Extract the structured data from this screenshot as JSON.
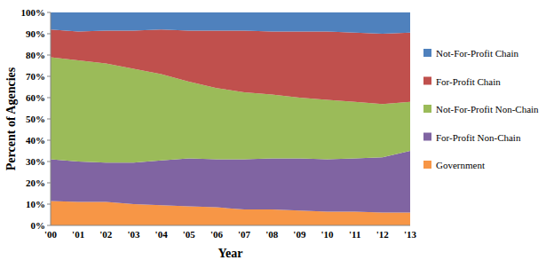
{
  "chart_data": {
    "type": "area",
    "stacked": true,
    "legend": "right",
    "x_label": "Year",
    "y_label": "Percent of Agencies",
    "categories": [
      "'00",
      "'01",
      "'02",
      "'03",
      "'04",
      "'05",
      "'06",
      "'07",
      "'08",
      "'09",
      "'10",
      "'11",
      "'12",
      "'13"
    ],
    "ylim": [
      0,
      100
    ],
    "yticks": [
      {
        "value": 0,
        "label": "0%"
      },
      {
        "value": 10,
        "label": "10%"
      },
      {
        "value": 20,
        "label": "20%"
      },
      {
        "value": 30,
        "label": "30%"
      },
      {
        "value": 40,
        "label": "40%"
      },
      {
        "value": 50,
        "label": "50%"
      },
      {
        "value": 60,
        "label": "60%"
      },
      {
        "value": 70,
        "label": "70%"
      },
      {
        "value": 80,
        "label": "80%"
      },
      {
        "value": 90,
        "label": "90%"
      },
      {
        "value": 100,
        "label": "100%"
      }
    ],
    "series": [
      {
        "name": "Government",
        "color": "#f79646",
        "values": [
          11.5,
          11,
          11,
          10,
          9.5,
          9,
          8.5,
          7.5,
          7.5,
          7,
          6.5,
          6.5,
          6,
          6
        ]
      },
      {
        "name": "For-Profit Non-Chain",
        "color": "#8064a2",
        "values": [
          19.5,
          19,
          18.5,
          19.5,
          21,
          22.5,
          22.5,
          23.5,
          24,
          24.5,
          24.5,
          25,
          26,
          29
        ]
      },
      {
        "name": "Not-For-Profit Non-Chain",
        "color": "#9bbb59",
        "values": [
          48,
          47.5,
          46.5,
          44,
          40.5,
          36,
          33.5,
          31.5,
          30,
          28.5,
          28,
          26.5,
          25,
          23
        ]
      },
      {
        "name": "For-Profit Chain",
        "color": "#c0504d",
        "values": [
          13,
          13.5,
          15.5,
          18,
          21,
          24,
          27,
          29,
          29.5,
          31,
          32,
          32.5,
          33,
          32.5
        ]
      },
      {
        "name": "Not-For-Profit Chain",
        "color": "#4f81bd",
        "values": [
          8,
          9,
          8.5,
          8.5,
          8,
          8.5,
          8.5,
          8.5,
          9,
          9,
          9,
          9.5,
          10,
          9.5
        ]
      }
    ]
  }
}
